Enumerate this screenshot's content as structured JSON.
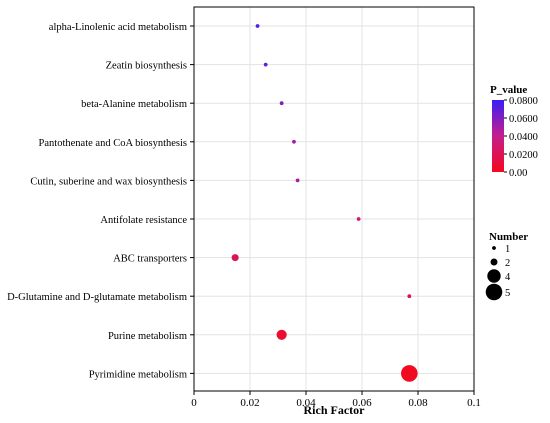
{
  "chart_data": {
    "type": "scatter",
    "title": "",
    "xlabel": "Rich Factor",
    "ylabel": "",
    "xlim": [
      0,
      0.1
    ],
    "x_ticks": [
      0,
      0.02,
      0.04,
      0.06,
      0.08,
      0.1
    ],
    "x_tick_labels": [
      "0",
      "0.02",
      "0.04",
      "0.06",
      "0.08",
      "0.1"
    ],
    "grid": true,
    "categories": [
      "alpha-Linolenic acid metabolism",
      "Zeatin biosynthesis",
      "beta-Alanine metabolism",
      "Pantothenate and CoA biosynthesis",
      "Cutin, suberine and wax biosynthesis",
      "Antifolate resistance",
      "ABC transporters",
      "D-Glutamine and D-glutamate metabolism",
      "Purine metabolism",
      "Pyrimidine metabolism"
    ],
    "points": [
      {
        "category": "alpha-Linolenic acid metabolism",
        "rich_factor": 0.0227,
        "number": 1,
        "p_value": 0.072
      },
      {
        "category": "Zeatin biosynthesis",
        "rich_factor": 0.0256,
        "number": 1,
        "p_value": 0.068
      },
      {
        "category": "beta-Alanine metabolism",
        "rich_factor": 0.0313,
        "number": 1,
        "p_value": 0.06
      },
      {
        "category": "Pantothenate and CoA biosynthesis",
        "rich_factor": 0.0357,
        "number": 1,
        "p_value": 0.05
      },
      {
        "category": "Cutin, suberine and wax biosynthesis",
        "rich_factor": 0.037,
        "number": 1,
        "p_value": 0.048
      },
      {
        "category": "Antifolate resistance",
        "rich_factor": 0.0588,
        "number": 1,
        "p_value": 0.03
      },
      {
        "category": "ABC transporters",
        "rich_factor": 0.0147,
        "number": 2,
        "p_value": 0.022
      },
      {
        "category": "D-Glutamine and D-glutamate metabolism",
        "rich_factor": 0.0769,
        "number": 1,
        "p_value": 0.018
      },
      {
        "category": "Purine metabolism",
        "rich_factor": 0.0313,
        "number": 3,
        "p_value": 0.006
      },
      {
        "category": "Pyrimidine metabolism",
        "rich_factor": 0.0769,
        "number": 5,
        "p_value": 0.001
      }
    ],
    "color_legend": {
      "title": "P_value",
      "range": [
        0.0,
        0.08
      ],
      "ticks": [
        "0.00",
        "0.0200",
        "0.0400",
        "0.0600",
        "0.0800"
      ],
      "low_color": "#f20a1e",
      "mid_color": "#c41e8c",
      "high_color": "#3a1ef5",
      "placement": "right"
    },
    "size_legend": {
      "title": "Number",
      "values": [
        1,
        2,
        4,
        5
      ],
      "labels": [
        "1",
        "2",
        "4",
        "5"
      ],
      "placement": "right"
    }
  }
}
